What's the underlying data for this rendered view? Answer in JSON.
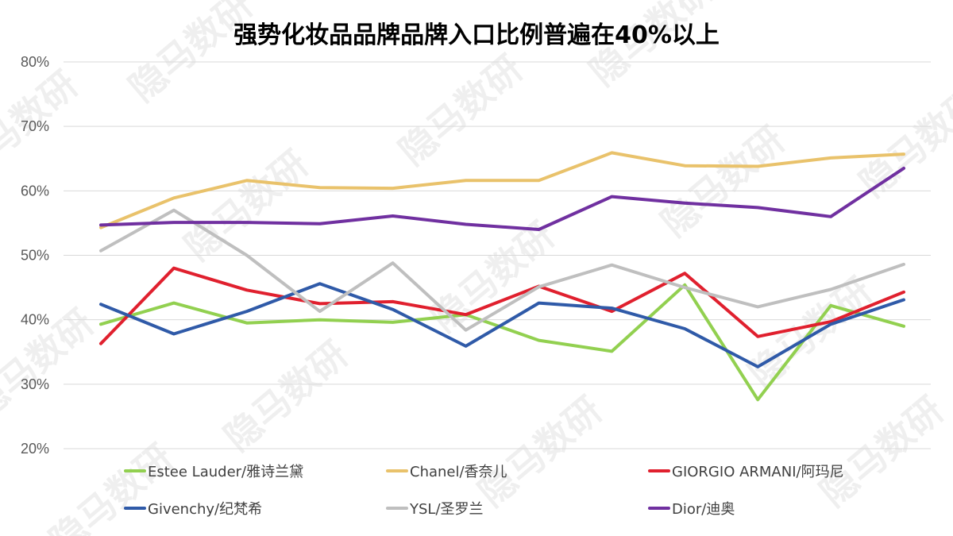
{
  "chart_data": {
    "type": "line",
    "title": "强势化妆品品牌品牌入口比例普遍在40%以上",
    "xlabel": "",
    "ylabel": "",
    "ylim": [
      20,
      80
    ],
    "yticks": [
      "20%",
      "30%",
      "40%",
      "50%",
      "60%",
      "70%",
      "80%"
    ],
    "ytick_values": [
      20,
      30,
      40,
      50,
      60,
      70,
      80
    ],
    "grid": true,
    "legend_position": "bottom",
    "num_points": 12,
    "series": [
      {
        "name": "Estee Lauder/雅诗兰黛",
        "color": "#92d050",
        "values": [
          39.3,
          42.6,
          39.5,
          40.0,
          39.6,
          40.8,
          36.8,
          35.1,
          45.4,
          27.6,
          42.2,
          39.0
        ]
      },
      {
        "name": "Chanel/香奈儿",
        "color": "#e9c26b",
        "values": [
          54.3,
          58.9,
          61.6,
          60.5,
          60.4,
          61.6,
          61.6,
          65.9,
          63.9,
          63.8,
          65.1,
          65.7
        ]
      },
      {
        "name": "GIORGIO ARMANI/阿玛尼",
        "color": "#e0202e",
        "values": [
          36.3,
          48.0,
          44.6,
          42.5,
          42.8,
          40.8,
          45.2,
          41.3,
          47.2,
          37.4,
          39.7,
          44.3
        ]
      },
      {
        "name": "Givenchy/纪梵希",
        "color": "#2f5aa8",
        "values": [
          42.4,
          37.8,
          41.3,
          45.6,
          41.6,
          35.9,
          42.6,
          41.8,
          38.6,
          32.7,
          39.3,
          43.1
        ]
      },
      {
        "name": "YSL/圣罗兰",
        "color": "#bfbfbf",
        "values": [
          50.7,
          57.0,
          50.0,
          41.3,
          48.8,
          38.4,
          45.1,
          48.5,
          45.0,
          42.0,
          44.7,
          48.6
        ]
      },
      {
        "name": "Dior/迪奥",
        "color": "#7030a0",
        "values": [
          54.7,
          55.1,
          55.1,
          54.9,
          56.1,
          54.8,
          54.0,
          59.1,
          58.1,
          57.4,
          56.0,
          63.5
        ]
      }
    ]
  },
  "watermark": "隐马数研"
}
